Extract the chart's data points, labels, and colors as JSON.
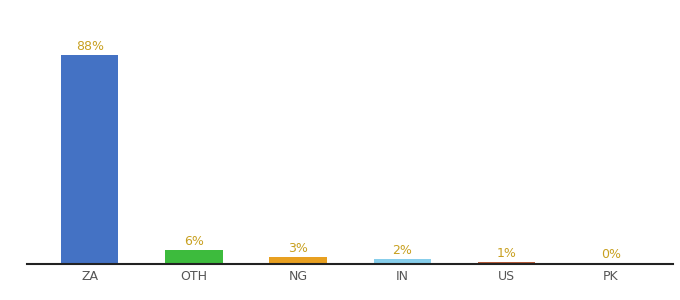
{
  "categories": [
    "ZA",
    "OTH",
    "NG",
    "IN",
    "US",
    "PK"
  ],
  "values": [
    88,
    6,
    3,
    2,
    1,
    0.3
  ],
  "labels": [
    "88%",
    "6%",
    "3%",
    "2%",
    "1%",
    "0%"
  ],
  "bar_colors": [
    "#4472c4",
    "#3dbb3d",
    "#e8a020",
    "#87ceeb",
    "#b85c38",
    "#c0392b"
  ],
  "background_color": "#ffffff",
  "label_color": "#c8a020",
  "figsize": [
    6.8,
    3.0
  ],
  "dpi": 100
}
